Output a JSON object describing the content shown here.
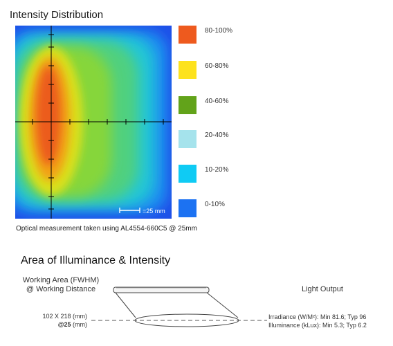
{
  "title": "Intensity Distribution",
  "scale_label": "=25 mm",
  "legend": [
    {
      "label": "80-100%",
      "color": "#ee5a1e"
    },
    {
      "label": "60-80%",
      "color": "#fde21d"
    },
    {
      "label": "40-60%",
      "color": "#62a31a"
    },
    {
      "label": "20-40%",
      "color": "#a5e3ec"
    },
    {
      "label": "10-20%",
      "color": "#0fcbf4"
    },
    {
      "label": "0-10%",
      "color": "#1c72f2"
    }
  ],
  "caption": "Optical measurement taken using AL4554-660C5 @ 25mm",
  "section_title": "Area of Illuminance & Intensity",
  "working_area": {
    "title_line1": "Working Area (FWHM)",
    "title_line2": "@ Working Distance",
    "dims": "102 X 218 (mm)",
    "distance_value": "@25",
    "distance_unit": "(mm)"
  },
  "light_output": {
    "title": "Light Output",
    "irradiance": "Irradiance (W/M²):  Min 81.6; Typ 96",
    "illuminance": "Illuminance  (kLux): Min 5.3; Typ 6.2"
  }
}
